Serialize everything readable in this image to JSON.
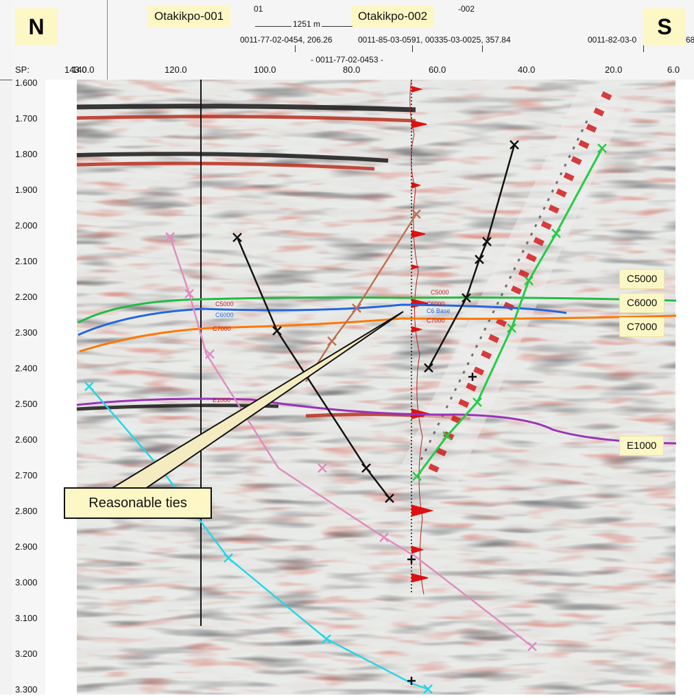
{
  "compass": {
    "north": "N",
    "south": "S"
  },
  "wells": [
    {
      "label": "Otakikpo-001"
    },
    {
      "label": "Otakikpo-002"
    }
  ],
  "header_texts": {
    "cut_top_1": "01",
    "cut_top_2": "-002",
    "distance": "1251 m",
    "tie_a": "0011-77-02-0454, 206.26",
    "tie_b": "0011-85-03-0591, 00335-03-0025, 357.84",
    "tie_c": "0011-82-03-0",
    "tie_c_end": "68",
    "tie_d": "- 0011-77-02-0453 -",
    "sp_label": "SP:",
    "sp_first": "143.0",
    "sp_second": "140.0"
  },
  "sp_ticks": [
    "120.0",
    "100.0",
    "80.0",
    "60.0",
    "40.0",
    "20.0",
    "6.0"
  ],
  "time_ticks": [
    "1.600",
    "1.700",
    "1.800",
    "1.900",
    "2.000",
    "2.100",
    "2.200",
    "2.300",
    "2.400",
    "2.500",
    "2.600",
    "2.700",
    "2.800",
    "2.900",
    "3.000",
    "3.100",
    "3.200",
    "3.300"
  ],
  "horizon_labels": [
    "C5000",
    "C6000",
    "C7000",
    "E1000"
  ],
  "callout": "Reasonable ties",
  "colors": {
    "c5000": "#22bb44",
    "c6000": "#2266dd",
    "c7000": "#ff7700",
    "e1000": "#9933bb",
    "seismic_red": "#c0392b",
    "seismic_dark": "#222222",
    "cyan_line": "#22d7e8",
    "pink_line": "#e08cc0",
    "brown_line": "#c07050",
    "green_line": "#22cc44",
    "label_bg": "#fdf7c6"
  }
}
